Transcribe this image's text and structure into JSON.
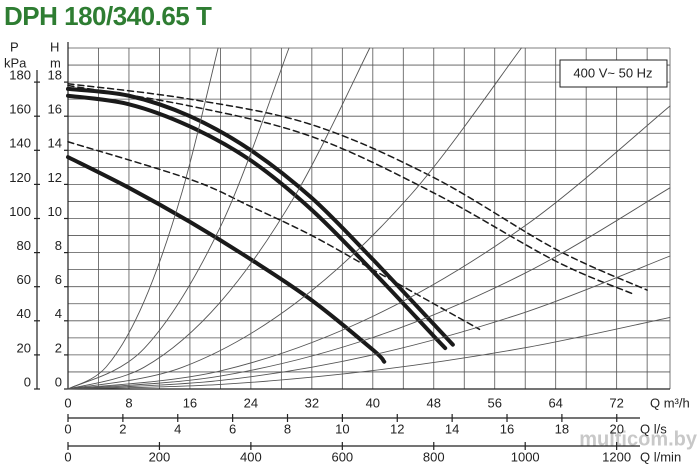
{
  "chart_data": {
    "type": "line",
    "title": "DPH 180/340.65 T",
    "annotation": "400 V~ 50 Hz",
    "watermark": "multicom.by",
    "y_label": "H",
    "y_unit": "m",
    "y2_label": "P",
    "y2_unit": "kPa",
    "x_label": "Q m³/h",
    "x2_label": "Q l/s",
    "x3_label": "Q l/min",
    "xlim": [
      0,
      79
    ],
    "xticks": [
      0,
      8,
      16,
      24,
      32,
      40,
      48,
      56,
      64,
      72
    ],
    "x2lim": [
      0,
      21.94
    ],
    "x2ticks": [
      0,
      2,
      4,
      6,
      8,
      10,
      12,
      14,
      16,
      18,
      20
    ],
    "x3lim": [
      0,
      1316.7
    ],
    "x3ticks": [
      0,
      200,
      400,
      600,
      800,
      1000,
      1200
    ],
    "ylim": [
      0,
      20
    ],
    "yticks": [
      0,
      2,
      4,
      6,
      8,
      10,
      12,
      14,
      16,
      18
    ],
    "y2lim": [
      0,
      200
    ],
    "y2ticks": [
      0,
      20,
      40,
      60,
      80,
      100,
      120,
      140,
      160,
      180
    ],
    "xgrid": [
      0,
      4,
      8,
      12,
      16,
      20,
      24,
      28,
      32,
      36,
      40,
      44,
      48,
      52,
      56,
      60,
      64,
      68,
      72,
      76,
      79
    ],
    "ygrid": [
      0,
      1,
      2,
      3,
      4,
      5,
      6,
      7,
      8,
      9,
      10,
      11,
      12,
      13,
      14,
      15,
      16,
      17,
      18,
      19,
      20
    ],
    "grid": true,
    "series": [
      {
        "style": "solid",
        "color": "#1a1a1a",
        "x": [
          0,
          8,
          16,
          24,
          32,
          40,
          48,
          50.5
        ],
        "values": [
          17.6,
          17.2,
          16,
          14,
          11.2,
          7.6,
          3.8,
          2.6
        ]
      },
      {
        "style": "solid",
        "color": "#1a1a1a",
        "x": [
          0,
          8,
          16,
          24,
          32,
          40,
          48,
          49.5
        ],
        "values": [
          17.2,
          16.7,
          15.4,
          13.4,
          10.5,
          6.9,
          3.1,
          2.4
        ]
      },
      {
        "style": "solid",
        "color": "#1a1a1a",
        "x": [
          0,
          8,
          16,
          24,
          32,
          40,
          41.5
        ],
        "values": [
          13.6,
          11.8,
          9.8,
          7.6,
          5.2,
          2.3,
          1.6
        ]
      },
      {
        "style": "dashed",
        "color": "#1a1a1a",
        "x": [
          0,
          16,
          32,
          48,
          64,
          76
        ],
        "values": [
          17.9,
          17,
          15.5,
          12.4,
          8.2,
          5.8
        ]
      },
      {
        "style": "dashed",
        "color": "#1a1a1a",
        "x": [
          0,
          16,
          32,
          48,
          64,
          74
        ],
        "values": [
          17.8,
          16.6,
          14.8,
          11.5,
          7.5,
          5.6
        ]
      },
      {
        "style": "dashed",
        "color": "#1a1a1a",
        "x": [
          0,
          16,
          24,
          32,
          40,
          48,
          54
        ],
        "values": [
          14.5,
          12.3,
          10.7,
          9,
          7,
          5,
          3.5
        ]
      },
      {
        "style": "thin",
        "color": "#555555",
        "x": [
          0,
          5,
          10,
          15,
          19.7
        ],
        "values": [
          0,
          1.29,
          5.15,
          11.6,
          20
        ]
      },
      {
        "style": "thin",
        "color": "#555555",
        "x": [
          0,
          10,
          20,
          29
        ],
        "values": [
          0,
          2.38,
          9.51,
          20
        ]
      },
      {
        "style": "thin",
        "color": "#555555",
        "x": [
          0,
          10,
          20,
          30,
          39.6
        ],
        "values": [
          0,
          1.28,
          5.1,
          11.5,
          20
        ]
      },
      {
        "style": "thin",
        "color": "#555555",
        "x": [
          0,
          15,
          30,
          45,
          59.5
        ],
        "values": [
          0,
          1.27,
          5.08,
          11.4,
          20
        ]
      },
      {
        "style": "thin",
        "color": "#555555",
        "x": [
          0,
          20,
          40,
          60,
          79
        ],
        "values": [
          0,
          1.06,
          4.26,
          9.58,
          16.6
        ]
      },
      {
        "style": "thin",
        "color": "#555555",
        "x": [
          0,
          20,
          40,
          60,
          79
        ],
        "values": [
          0,
          0.76,
          3.02,
          6.8,
          11.8
        ]
      },
      {
        "style": "thin",
        "color": "#555555",
        "x": [
          0,
          20,
          40,
          60,
          79
        ],
        "values": [
          0,
          0.5,
          2.0,
          4.5,
          7.8
        ]
      },
      {
        "style": "thin",
        "color": "#555555",
        "x": [
          0,
          20,
          40,
          60,
          79
        ],
        "values": [
          0,
          0.27,
          1.08,
          2.42,
          4.2
        ]
      }
    ]
  }
}
